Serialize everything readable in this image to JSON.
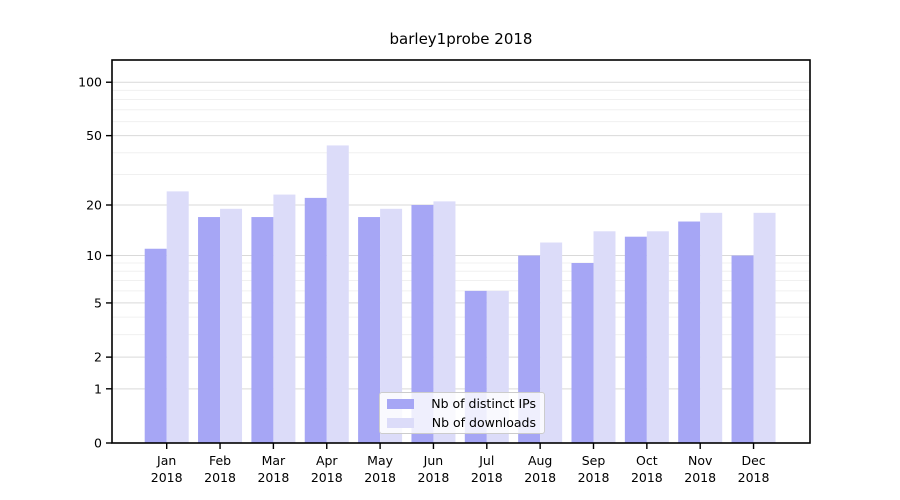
{
  "title": "barley1probe 2018",
  "colors": {
    "ips_bar": "#a6a6f5",
    "downloads_bar": "#dcdcf9",
    "grid_major": "#d9d9d9",
    "grid_minor": "#f0f0f0",
    "spine": "#000000",
    "legend_border": "#cccccc",
    "text": "#000000"
  },
  "legend": {
    "items": [
      {
        "label": "Nb of distinct IPs",
        "color_key": "ips_bar"
      },
      {
        "label": "Nb of downloads",
        "color_key": "downloads_bar"
      }
    ]
  },
  "y_axis": {
    "tick_labels": [
      "0",
      "1",
      "2",
      "5",
      "10",
      "20",
      "50",
      "100"
    ],
    "tick_values": [
      0,
      1,
      2,
      5,
      10,
      20,
      50,
      100
    ],
    "minor_values": [
      3,
      4,
      6,
      7,
      8,
      9,
      30,
      40,
      60,
      70,
      80,
      90
    ]
  },
  "x_axis": {
    "months": [
      "Jan",
      "Feb",
      "Mar",
      "Apr",
      "May",
      "Jun",
      "Jul",
      "Aug",
      "Sep",
      "Oct",
      "Nov",
      "Dec"
    ],
    "year": "2018"
  },
  "chart_data": {
    "type": "bar",
    "title": "barley1probe 2018",
    "categories": [
      "Jan 2018",
      "Feb 2018",
      "Mar 2018",
      "Apr 2018",
      "May 2018",
      "Jun 2018",
      "Jul 2018",
      "Aug 2018",
      "Sep 2018",
      "Oct 2018",
      "Nov 2018",
      "Dec 2018"
    ],
    "series": [
      {
        "name": "Nb of distinct IPs",
        "color": "#a6a6f5",
        "values": [
          11,
          17,
          17,
          22,
          17,
          20,
          6,
          10,
          9,
          13,
          16,
          10
        ]
      },
      {
        "name": "Nb of downloads",
        "color": "#dcdcf9",
        "values": [
          24,
          19,
          23,
          44,
          19,
          21,
          6,
          12,
          14,
          14,
          18,
          18
        ]
      }
    ],
    "xlabel": "",
    "ylabel": "",
    "yscale": "log1p",
    "yticks": [
      0,
      1,
      2,
      5,
      10,
      20,
      50,
      100
    ],
    "ylim": [
      0,
      133
    ],
    "grid": true,
    "legend_position": "lower center-right inside plot"
  }
}
